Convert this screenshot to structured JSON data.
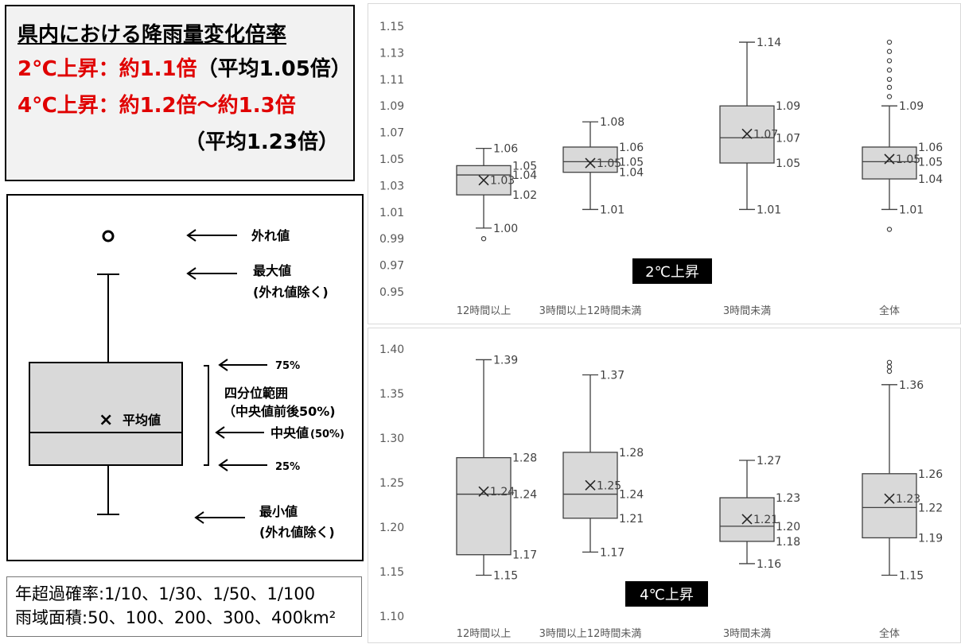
{
  "summary": {
    "title": "県内における降雨量変化倍率",
    "line1": {
      "label": "2℃上昇：",
      "value": "約1.1倍",
      "avg": "（平均1.05倍）"
    },
    "line2": {
      "label": "4℃上昇：",
      "value": "約1.2倍～約1.3倍"
    },
    "line3": {
      "avg": "（平均1.23倍）"
    }
  },
  "legend": {
    "outlier": "外れ値",
    "max1": "最大値",
    "max2": "(外れ値除く)",
    "q75": "75%",
    "iqr1": "四分位範囲",
    "iqr2": "（中央値前後50%)",
    "median_label": "中央値",
    "median_pct": "(50%)",
    "q25": "25%",
    "mean": "平均値",
    "min1": "最小値",
    "min2": "(外れ値除く)",
    "mean_marker": "×"
  },
  "conditions": {
    "line1": "年超過確率:1/10、1/30、1/50、1/100",
    "line2": "雨域面積:50、100、200、300、400km²"
  },
  "colors": {
    "box_fill": "#d9d9d9",
    "red": "#e00000",
    "axis_text": "#595959",
    "gridline": "#d9d9d9"
  },
  "chart_data": [
    {
      "type": "box",
      "badge": "2℃上昇",
      "categories": [
        "12時間以上",
        "3時間以上12時間未満",
        "3時間未満",
        "全体"
      ],
      "yticks": [
        "1.15",
        "1.13",
        "1.11",
        "1.09",
        "1.07",
        "1.05",
        "1.03",
        "1.01",
        "0.99",
        "0.97",
        "0.95"
      ],
      "ylim": [
        0.95,
        1.15
      ],
      "grid": false,
      "boxes": [
        {
          "min": 0.998,
          "q1": 1.023,
          "median": 1.038,
          "q3": 1.045,
          "max": 1.058,
          "mean": 1.034,
          "outliers": [
            0.99
          ],
          "labels": {
            "max": "1.06",
            "q3": "1.05",
            "median": "1.04",
            "mean": "1.03",
            "q1": "1.02",
            "min": "1.00"
          }
        },
        {
          "min": 1.012,
          "q1": 1.04,
          "median": 1.048,
          "q3": 1.059,
          "max": 1.078,
          "mean": 1.047,
          "outliers": [],
          "labels": {
            "max": "1.08",
            "q3": "1.06",
            "median": "1.05",
            "mean": "1.05",
            "q1": "1.04",
            "min": "1.01"
          }
        },
        {
          "min": 1.012,
          "q1": 1.047,
          "median": 1.066,
          "q3": 1.09,
          "max": 1.138,
          "mean": 1.069,
          "outliers": [],
          "labels": {
            "max": "1.14",
            "q3": "1.09",
            "median": "1.07",
            "mean": "1.07",
            "q1": "1.05",
            "min": "1.01"
          }
        },
        {
          "min": 1.012,
          "q1": 1.035,
          "median": 1.048,
          "q3": 1.059,
          "max": 1.09,
          "mean": 1.05,
          "outliers": [
            0.997,
            1.097,
            1.104,
            1.11,
            1.117,
            1.124,
            1.131,
            1.138
          ],
          "labels": {
            "max": "1.09",
            "q3": "1.06",
            "median": "1.05",
            "mean": "1.05",
            "q1": "1.04",
            "min": "1.01"
          }
        }
      ]
    },
    {
      "type": "box",
      "badge": "4℃上昇",
      "categories": [
        "12時間以上",
        "3時間以上12時間未満",
        "3時間未満",
        "全体"
      ],
      "yticks": [
        "1.40",
        "1.35",
        "1.30",
        "1.25",
        "1.20",
        "1.15",
        "1.10"
      ],
      "ylim": [
        1.1,
        1.4
      ],
      "grid": false,
      "boxes": [
        {
          "min": 1.146,
          "q1": 1.169,
          "median": 1.237,
          "q3": 1.278,
          "max": 1.388,
          "mean": 1.24,
          "outliers": [],
          "labels": {
            "max": "1.39",
            "q3": "1.28",
            "median": "1.24",
            "mean": "1.24",
            "q1": "1.17",
            "min": "1.15"
          }
        },
        {
          "min": 1.172,
          "q1": 1.21,
          "median": 1.237,
          "q3": 1.284,
          "max": 1.371,
          "mean": 1.247,
          "outliers": [],
          "labels": {
            "max": "1.37",
            "q3": "1.28",
            "median": "1.24",
            "mean": "1.25",
            "q1": "1.21",
            "min": "1.17"
          }
        },
        {
          "min": 1.159,
          "q1": 1.184,
          "median": 1.201,
          "q3": 1.233,
          "max": 1.275,
          "mean": 1.209,
          "outliers": [],
          "labels": {
            "max": "1.27",
            "q3": "1.23",
            "median": "1.20",
            "mean": "1.21",
            "q1": "1.18",
            "min": "1.16"
          }
        },
        {
          "min": 1.146,
          "q1": 1.188,
          "median": 1.222,
          "q3": 1.26,
          "max": 1.36,
          "mean": 1.232,
          "outliers": [
            1.375,
            1.38,
            1.385
          ],
          "labels": {
            "max": "1.36",
            "q3": "1.26",
            "median": "1.22",
            "mean": "1.23",
            "q1": "1.19",
            "min": "1.15"
          }
        }
      ]
    }
  ]
}
